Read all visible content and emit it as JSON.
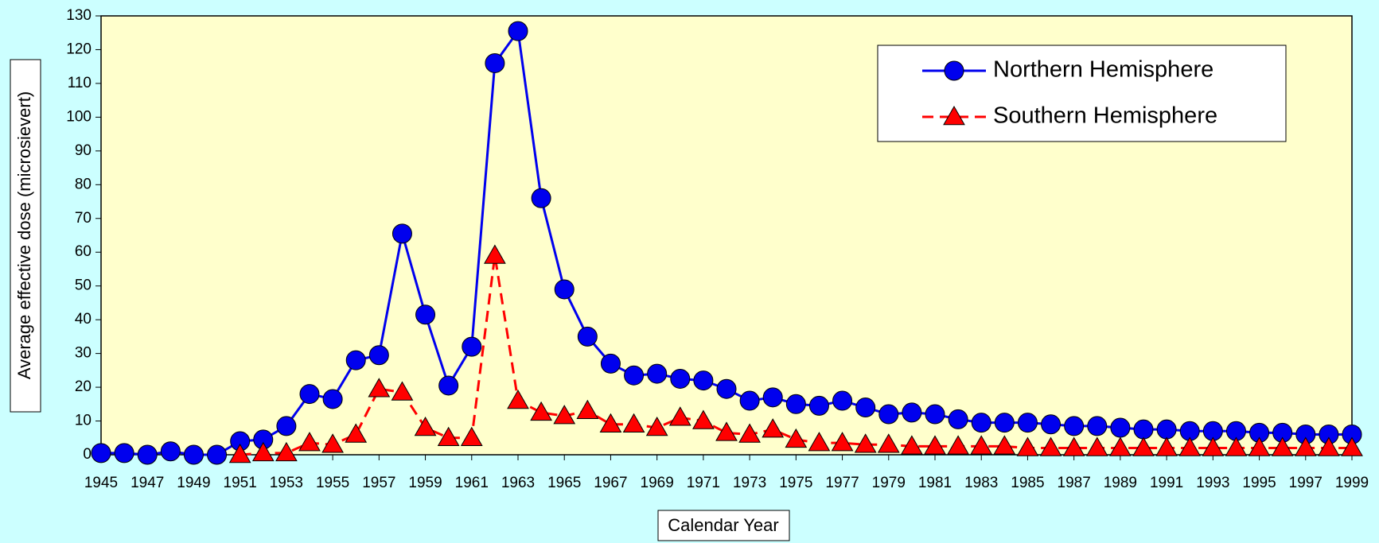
{
  "chart_data": {
    "type": "line",
    "x_label": "Calendar Year",
    "y_label": "Average effective dose (microsievert)",
    "x": [
      1945,
      1946,
      1947,
      1948,
      1949,
      1950,
      1951,
      1952,
      1953,
      1954,
      1955,
      1956,
      1957,
      1958,
      1959,
      1960,
      1961,
      1962,
      1963,
      1964,
      1965,
      1966,
      1967,
      1968,
      1969,
      1970,
      1971,
      1972,
      1973,
      1974,
      1975,
      1976,
      1977,
      1978,
      1979,
      1980,
      1981,
      1982,
      1983,
      1984,
      1985,
      1986,
      1987,
      1988,
      1989,
      1990,
      1991,
      1992,
      1993,
      1994,
      1995,
      1996,
      1997,
      1998,
      1999
    ],
    "series": [
      {
        "name": "Northern Hemisphere",
        "color": "#0000ee",
        "marker": "circle",
        "dashed": false,
        "values": [
          0.5,
          0.5,
          0,
          1,
          0,
          0,
          4,
          4.5,
          8.5,
          18,
          16.5,
          28,
          29.5,
          65.5,
          41.5,
          20.5,
          32,
          116,
          125.5,
          76,
          49,
          35,
          27,
          23.5,
          24,
          22.5,
          22,
          19.5,
          16,
          17,
          15,
          14.5,
          16,
          14,
          12,
          12.5,
          12,
          10.5,
          9.5,
          9.5,
          9.5,
          9,
          8.5,
          8.5,
          8,
          7.5,
          7.5,
          7,
          7,
          7,
          6.5,
          6.5,
          6,
          6,
          6
        ]
      },
      {
        "name": "Southern Hemisphere",
        "color": "#ff0000",
        "marker": "triangle",
        "dashed": true,
        "values": [
          null,
          null,
          null,
          null,
          null,
          null,
          0,
          0.5,
          0.5,
          3.5,
          3,
          6,
          19.5,
          18.5,
          8,
          5,
          5,
          59,
          16,
          12.5,
          11.5,
          13,
          9,
          9,
          8,
          11,
          10,
          6.5,
          6,
          7.5,
          4.5,
          3.5,
          3.5,
          3,
          3,
          2.5,
          2.5,
          2.5,
          2.5,
          2.5,
          2,
          2,
          2,
          2,
          2,
          2,
          2,
          2,
          2,
          2,
          2,
          2,
          2,
          2,
          2
        ]
      }
    ],
    "xlim": [
      1945,
      1999
    ],
    "xticks": [
      1945,
      1947,
      1949,
      1951,
      1953,
      1955,
      1957,
      1959,
      1961,
      1963,
      1965,
      1967,
      1969,
      1971,
      1973,
      1975,
      1977,
      1979,
      1981,
      1983,
      1985,
      1987,
      1989,
      1991,
      1993,
      1995,
      1997,
      1999
    ],
    "ylim": [
      0,
      130
    ],
    "yticks": [
      0,
      10,
      20,
      30,
      40,
      50,
      60,
      70,
      80,
      90,
      100,
      110,
      120,
      130
    ],
    "grid": false,
    "legend": "upper right"
  }
}
